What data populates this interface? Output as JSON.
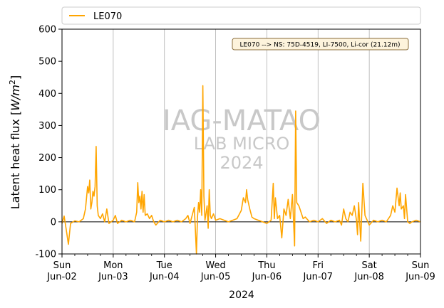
{
  "chart_data": {
    "type": "line",
    "xlabel": "2024",
    "ylabel_main": "Latent heat flux [",
    "ylabel_unit": "W/m",
    "ylabel_sup": "2",
    "ylabel_close": "]",
    "ylim": [
      -100,
      600
    ],
    "yticks": [
      -100,
      0,
      100,
      200,
      300,
      400,
      500,
      600
    ],
    "xlim": [
      "2024-06-02T00:00",
      "2024-06-09T00:00"
    ],
    "xticks": [
      {
        "day": "Sun",
        "date": "Jun-02"
      },
      {
        "day": "Mon",
        "date": "Jun-03"
      },
      {
        "day": "Tue",
        "date": "Jun-04"
      },
      {
        "day": "Wed",
        "date": "Jun-05"
      },
      {
        "day": "Thu",
        "date": "Jun-06"
      },
      {
        "day": "Fri",
        "date": "Jun-07"
      },
      {
        "day": "Sat",
        "date": "Jun-08"
      },
      {
        "day": "Sun",
        "date": "Jun-09"
      }
    ],
    "grid": "x-major",
    "legend": "top",
    "annotation": "LE070 --> NS: 75D-4519, LI-7500, Li-cor (21.12m)",
    "watermark": [
      "IAG-MATAO",
      "LAB MICRO",
      "2024"
    ],
    "series": [
      {
        "name": "LE070",
        "color": "#FFA500",
        "points": [
          [
            "2024-06-02T00:00",
            -5
          ],
          [
            "2024-06-02T01:00",
            18
          ],
          [
            "2024-06-02T02:00",
            -25
          ],
          [
            "2024-06-02T03:00",
            -70
          ],
          [
            "2024-06-02T04:00",
            -5
          ],
          [
            "2024-06-02T06:00",
            3
          ],
          [
            "2024-06-02T08:00",
            0
          ],
          [
            "2024-06-02T10:00",
            10
          ],
          [
            "2024-06-02T11:00",
            40
          ],
          [
            "2024-06-02T12:00",
            110
          ],
          [
            "2024-06-02T12:30",
            90
          ],
          [
            "2024-06-02T13:00",
            130
          ],
          [
            "2024-06-02T13:30",
            40
          ],
          [
            "2024-06-02T14:00",
            60
          ],
          [
            "2024-06-02T14:30",
            95
          ],
          [
            "2024-06-02T15:00",
            80
          ],
          [
            "2024-06-02T15:30",
            110
          ],
          [
            "2024-06-02T16:00",
            235
          ],
          [
            "2024-06-02T16:30",
            50
          ],
          [
            "2024-06-02T17:00",
            20
          ],
          [
            "2024-06-02T18:00",
            10
          ],
          [
            "2024-06-02T19:00",
            25
          ],
          [
            "2024-06-02T20:00",
            0
          ],
          [
            "2024-06-02T21:00",
            40
          ],
          [
            "2024-06-02T22:00",
            -5
          ],
          [
            "2024-06-03T00:00",
            5
          ],
          [
            "2024-06-03T01:00",
            20
          ],
          [
            "2024-06-03T02:00",
            -5
          ],
          [
            "2024-06-03T04:00",
            5
          ],
          [
            "2024-06-03T06:00",
            0
          ],
          [
            "2024-06-03T08:00",
            5
          ],
          [
            "2024-06-03T10:00",
            0
          ],
          [
            "2024-06-03T11:00",
            30
          ],
          [
            "2024-06-03T11:30",
            122
          ],
          [
            "2024-06-03T12:00",
            60
          ],
          [
            "2024-06-03T12:30",
            80
          ],
          [
            "2024-06-03T13:00",
            40
          ],
          [
            "2024-06-03T13:30",
            95
          ],
          [
            "2024-06-03T14:00",
            30
          ],
          [
            "2024-06-03T14:30",
            85
          ],
          [
            "2024-06-03T15:00",
            20
          ],
          [
            "2024-06-03T16:00",
            25
          ],
          [
            "2024-06-03T17:00",
            10
          ],
          [
            "2024-06-03T18:00",
            20
          ],
          [
            "2024-06-03T19:00",
            0
          ],
          [
            "2024-06-03T20:00",
            -10
          ],
          [
            "2024-06-03T22:00",
            5
          ],
          [
            "2024-06-04T00:00",
            0
          ],
          [
            "2024-06-04T02:00",
            5
          ],
          [
            "2024-06-04T04:00",
            0
          ],
          [
            "2024-06-04T06:00",
            5
          ],
          [
            "2024-06-04T08:00",
            0
          ],
          [
            "2024-06-04T10:00",
            10
          ],
          [
            "2024-06-04T11:00",
            20
          ],
          [
            "2024-06-04T12:00",
            -5
          ],
          [
            "2024-06-04T13:00",
            20
          ],
          [
            "2024-06-04T14:00",
            45
          ],
          [
            "2024-06-04T14:30",
            -25
          ],
          [
            "2024-06-04T15:00",
            -100
          ],
          [
            "2024-06-04T15:30",
            15
          ],
          [
            "2024-06-04T16:00",
            60
          ],
          [
            "2024-06-04T16:30",
            30
          ],
          [
            "2024-06-04T17:00",
            100
          ],
          [
            "2024-06-04T17:30",
            20
          ],
          [
            "2024-06-04T18:00",
            424
          ],
          [
            "2024-06-04T18:30",
            80
          ],
          [
            "2024-06-04T19:00",
            5
          ],
          [
            "2024-06-04T20:00",
            50
          ],
          [
            "2024-06-04T20:30",
            -20
          ],
          [
            "2024-06-04T21:00",
            100
          ],
          [
            "2024-06-04T21:30",
            20
          ],
          [
            "2024-06-04T22:00",
            10
          ],
          [
            "2024-06-04T23:00",
            25
          ],
          [
            "2024-06-05T00:00",
            5
          ],
          [
            "2024-06-05T02:00",
            10
          ],
          [
            "2024-06-05T04:00",
            5
          ],
          [
            "2024-06-05T06:00",
            0
          ],
          [
            "2024-06-05T08:00",
            5
          ],
          [
            "2024-06-05T10:00",
            10
          ],
          [
            "2024-06-05T12:00",
            35
          ],
          [
            "2024-06-05T13:00",
            75
          ],
          [
            "2024-06-05T14:00",
            60
          ],
          [
            "2024-06-05T14:30",
            100
          ],
          [
            "2024-06-05T15:00",
            70
          ],
          [
            "2024-06-05T16:00",
            40
          ],
          [
            "2024-06-05T17:00",
            15
          ],
          [
            "2024-06-05T18:00",
            10
          ],
          [
            "2024-06-05T20:00",
            5
          ],
          [
            "2024-06-05T22:00",
            0
          ],
          [
            "2024-06-06T00:00",
            -5
          ],
          [
            "2024-06-06T02:00",
            5
          ],
          [
            "2024-06-06T03:00",
            120
          ],
          [
            "2024-06-06T03:30",
            10
          ],
          [
            "2024-06-06T04:00",
            75
          ],
          [
            "2024-06-06T05:00",
            10
          ],
          [
            "2024-06-06T06:00",
            20
          ],
          [
            "2024-06-06T07:00",
            -50
          ],
          [
            "2024-06-06T08:00",
            40
          ],
          [
            "2024-06-06T09:00",
            20
          ],
          [
            "2024-06-06T10:00",
            70
          ],
          [
            "2024-06-06T11:00",
            10
          ],
          [
            "2024-06-06T12:00",
            85
          ],
          [
            "2024-06-06T13:00",
            -75
          ],
          [
            "2024-06-06T13:30",
            345
          ],
          [
            "2024-06-06T14:00",
            60
          ],
          [
            "2024-06-06T15:00",
            50
          ],
          [
            "2024-06-06T16:00",
            30
          ],
          [
            "2024-06-06T17:00",
            10
          ],
          [
            "2024-06-06T18:00",
            15
          ],
          [
            "2024-06-06T20:00",
            0
          ],
          [
            "2024-06-06T22:00",
            5
          ],
          [
            "2024-06-07T00:00",
            0
          ],
          [
            "2024-06-07T02:00",
            10
          ],
          [
            "2024-06-07T04:00",
            -5
          ],
          [
            "2024-06-07T06:00",
            5
          ],
          [
            "2024-06-07T08:00",
            0
          ],
          [
            "2024-06-07T10:00",
            5
          ],
          [
            "2024-06-07T11:00",
            -10
          ],
          [
            "2024-06-07T12:00",
            40
          ],
          [
            "2024-06-07T13:00",
            10
          ],
          [
            "2024-06-07T14:00",
            0
          ],
          [
            "2024-06-07T15:00",
            30
          ],
          [
            "2024-06-07T16:00",
            20
          ],
          [
            "2024-06-07T17:00",
            50
          ],
          [
            "2024-06-07T18:00",
            5
          ],
          [
            "2024-06-07T18:30",
            -40
          ],
          [
            "2024-06-07T19:00",
            60
          ],
          [
            "2024-06-07T20:00",
            -60
          ],
          [
            "2024-06-07T21:00",
            120
          ],
          [
            "2024-06-07T22:00",
            20
          ],
          [
            "2024-06-07T23:00",
            5
          ],
          [
            "2024-06-08T00:00",
            -10
          ],
          [
            "2024-06-08T02:00",
            5
          ],
          [
            "2024-06-08T04:00",
            0
          ],
          [
            "2024-06-08T06:00",
            5
          ],
          [
            "2024-06-08T08:00",
            0
          ],
          [
            "2024-06-08T10:00",
            20
          ],
          [
            "2024-06-08T11:00",
            50
          ],
          [
            "2024-06-08T12:00",
            30
          ],
          [
            "2024-06-08T13:00",
            105
          ],
          [
            "2024-06-08T14:00",
            50
          ],
          [
            "2024-06-08T14:30",
            90
          ],
          [
            "2024-06-08T15:00",
            40
          ],
          [
            "2024-06-08T16:00",
            50
          ],
          [
            "2024-06-08T16:30",
            10
          ],
          [
            "2024-06-08T17:00",
            85
          ],
          [
            "2024-06-08T18:00",
            0
          ],
          [
            "2024-06-08T19:00",
            -5
          ],
          [
            "2024-06-08T20:00",
            0
          ],
          [
            "2024-06-08T22:00",
            5
          ],
          [
            "2024-06-09T00:00",
            0
          ]
        ]
      }
    ]
  }
}
